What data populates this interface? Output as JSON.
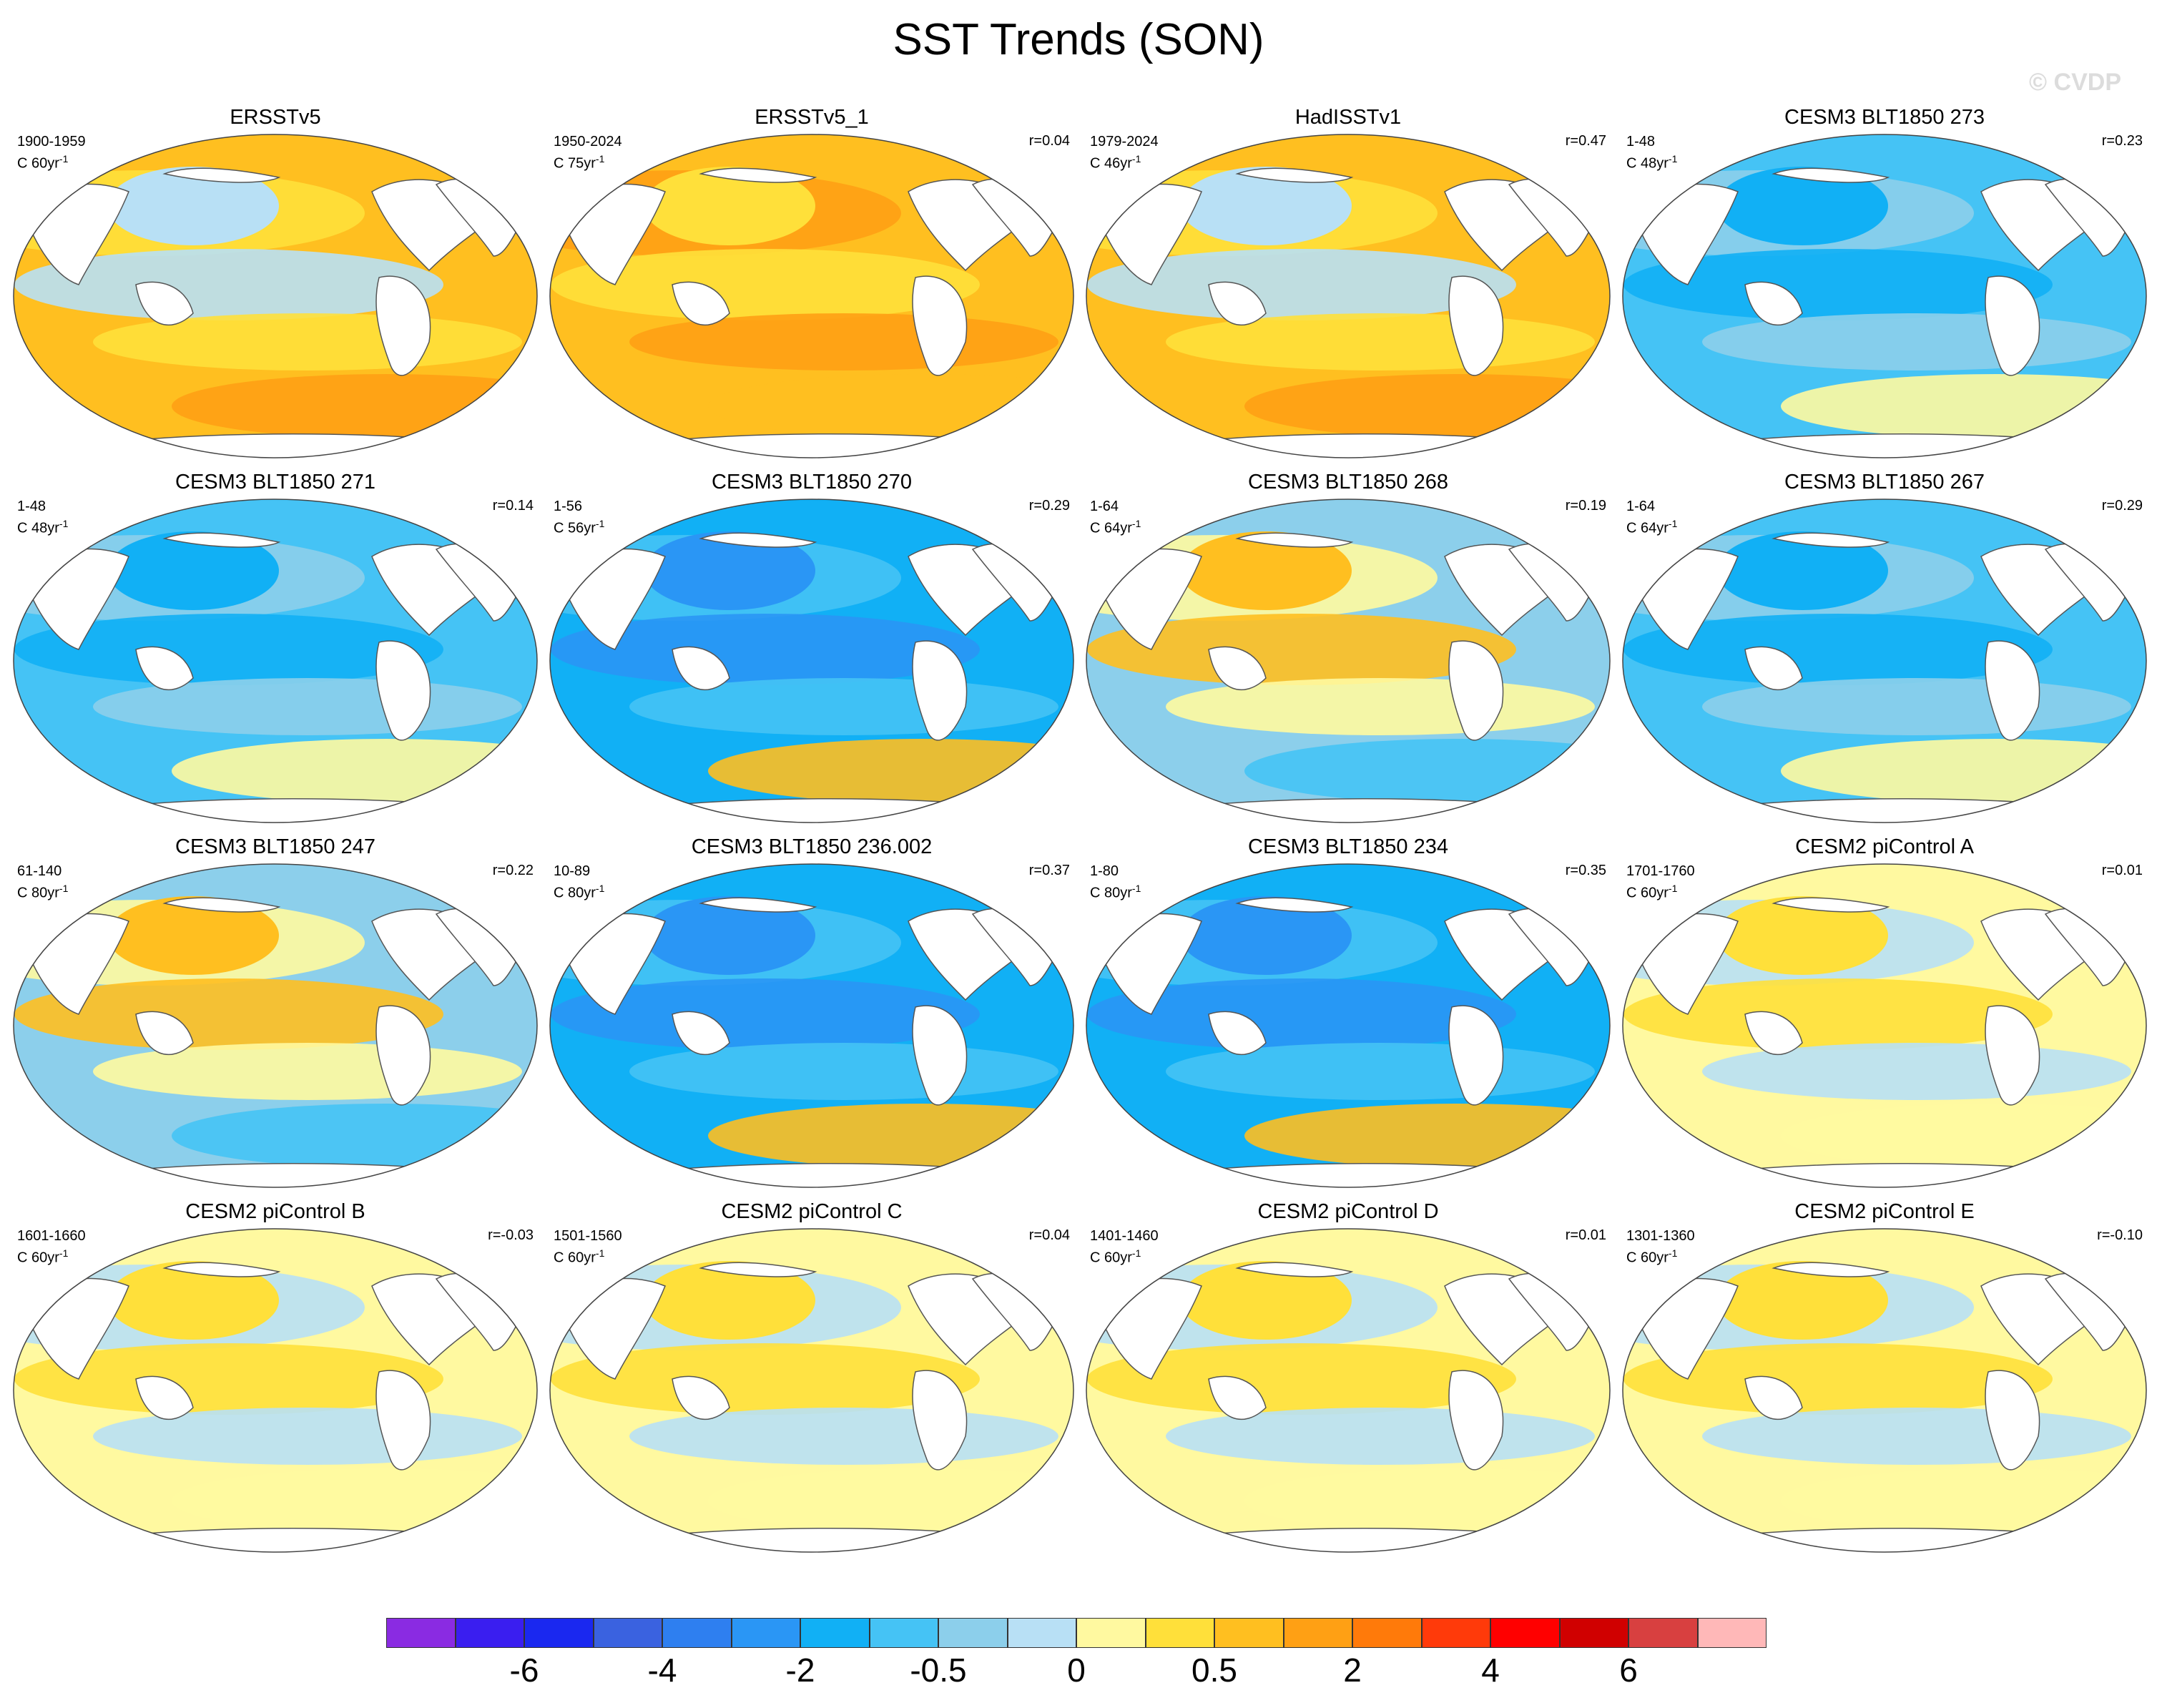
{
  "title": "SST Trends (SON)",
  "watermark": "© CVDP",
  "colors": {
    "land": "#ffffff",
    "coast": "#555555",
    "levels": [
      "#8a2be2",
      "#3a1ef0",
      "#1a28f0",
      "#3a62e0",
      "#2e7ff0",
      "#2a96f5",
      "#11b0f5",
      "#45c3f5",
      "#8ccfeb",
      "#b8e0f5",
      "#fff9a0",
      "#ffe03a",
      "#ffbf20",
      "#ffa014",
      "#ff7a0a",
      "#ff3a0a",
      "#ff0000",
      "#d00000",
      "#d84040",
      "#ffb8b8"
    ]
  },
  "colorbar": {
    "labels": [
      "-6",
      "-4",
      "-2",
      "-0.5",
      "0",
      "0.5",
      "2",
      "4",
      "6"
    ],
    "label_after_cell": [
      2,
      4,
      6,
      8,
      10,
      12,
      14,
      16,
      18
    ]
  },
  "panels": [
    {
      "title": "ERSSTv5",
      "period": "1900-1959",
      "scale": "C 60yr",
      "r": "",
      "pattern": "warm-mixed"
    },
    {
      "title": "ERSSTv5_1",
      "period": "1950-2024",
      "scale": "C 75yr",
      "r": "r=0.04",
      "pattern": "warm-strong"
    },
    {
      "title": "HadISSTv1",
      "period": "1979-2024",
      "scale": "C 46yr",
      "r": "r=0.47",
      "pattern": "warm-mixed"
    },
    {
      "title": "CESM3 BLT1850 273",
      "period": "1-48",
      "scale": "C 48yr",
      "r": "r=0.23",
      "pattern": "cool"
    },
    {
      "title": "CESM3 BLT1850 271",
      "period": "1-48",
      "scale": "C 48yr",
      "r": "r=0.14",
      "pattern": "cool"
    },
    {
      "title": "CESM3 BLT1850 270",
      "period": "1-56",
      "scale": "C 56yr",
      "r": "r=0.29",
      "pattern": "cool-strong"
    },
    {
      "title": "CESM3 BLT1850 268",
      "period": "1-64",
      "scale": "C 64yr",
      "r": "r=0.19",
      "pattern": "mixed"
    },
    {
      "title": "CESM3 BLT1850 267",
      "period": "1-64",
      "scale": "C 64yr",
      "r": "r=0.29",
      "pattern": "cool"
    },
    {
      "title": "CESM3 BLT1850 247",
      "period": "61-140",
      "scale": "C 80yr",
      "r": "r=0.22",
      "pattern": "mixed"
    },
    {
      "title": "CESM3 BLT1850 236.002",
      "period": "10-89",
      "scale": "C 80yr",
      "r": "r=0.37",
      "pattern": "cool-strong"
    },
    {
      "title": "CESM3 BLT1850 234",
      "period": "1-80",
      "scale": "C 80yr",
      "r": "r=0.35",
      "pattern": "cool-strong"
    },
    {
      "title": "CESM2 piControl A",
      "period": "1701-1760",
      "scale": "C 60yr",
      "r": "r=0.01",
      "pattern": "weak"
    },
    {
      "title": "CESM2 piControl B",
      "period": "1601-1660",
      "scale": "C 60yr",
      "r": "r=-0.03",
      "pattern": "weak"
    },
    {
      "title": "CESM2 piControl C",
      "period": "1501-1560",
      "scale": "C 60yr",
      "r": "r=0.04",
      "pattern": "weak"
    },
    {
      "title": "CESM2 piControl D",
      "period": "1401-1460",
      "scale": "C 60yr",
      "r": "r=0.01",
      "pattern": "weak"
    },
    {
      "title": "CESM2 piControl E",
      "period": "1301-1360",
      "scale": "C 60yr",
      "r": "r=-0.10",
      "pattern": "weak"
    }
  ],
  "scale_exponent": "-1"
}
